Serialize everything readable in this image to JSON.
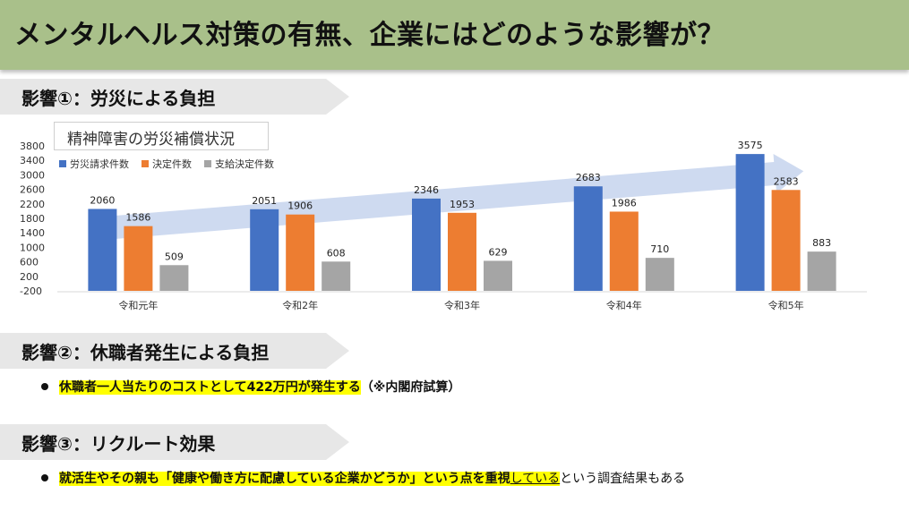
{
  "title": "メンタルヘルス対策の有無、企業にはどのような影響が？",
  "sections": [
    {
      "heading": "影響①：労災による負担"
    },
    {
      "heading": "影響②：休職者発生による負担"
    },
    {
      "heading": "影響③：リクルート効果"
    }
  ],
  "section2_bullet": {
    "highlight": "休職者一人当たりのコストとして422万円が発生する",
    "note": "（※内閣府試算）"
  },
  "section3_bullet": {
    "highlight_a": "就活生やその親も「健康や働き方に配慮している企業かどうか」という点を重視",
    "highlight_b": "している",
    "rest": "という調査結果もある"
  },
  "colors": {
    "title_bg": "#a9c08a",
    "series_1": "#4472c4",
    "series_2": "#ed7d31",
    "series_3": "#a5a5a5",
    "arrow": "#c9d6ee",
    "highlight": "#ffff00"
  },
  "chart_data": {
    "type": "bar",
    "title": "精神障害の労災補償状況",
    "categories": [
      "令和元年",
      "令和2年",
      "令和3年",
      "令和4年",
      "令和5年"
    ],
    "series": [
      {
        "name": "労災請求件数",
        "values": [
          2060,
          2051,
          2346,
          2683,
          3575
        ]
      },
      {
        "name": "決定件数",
        "values": [
          1586,
          1906,
          1953,
          1986,
          2583
        ]
      },
      {
        "name": "支給決定件数",
        "values": [
          509,
          608,
          629,
          710,
          883
        ]
      }
    ],
    "y_ticks": [
      "3800",
      "3400",
      "3000",
      "2600",
      "2200",
      "1800",
      "1400",
      "1000",
      "600",
      "200",
      "-200"
    ],
    "ylim": [
      -200,
      3800
    ],
    "legend": "top-left",
    "grid": false
  }
}
